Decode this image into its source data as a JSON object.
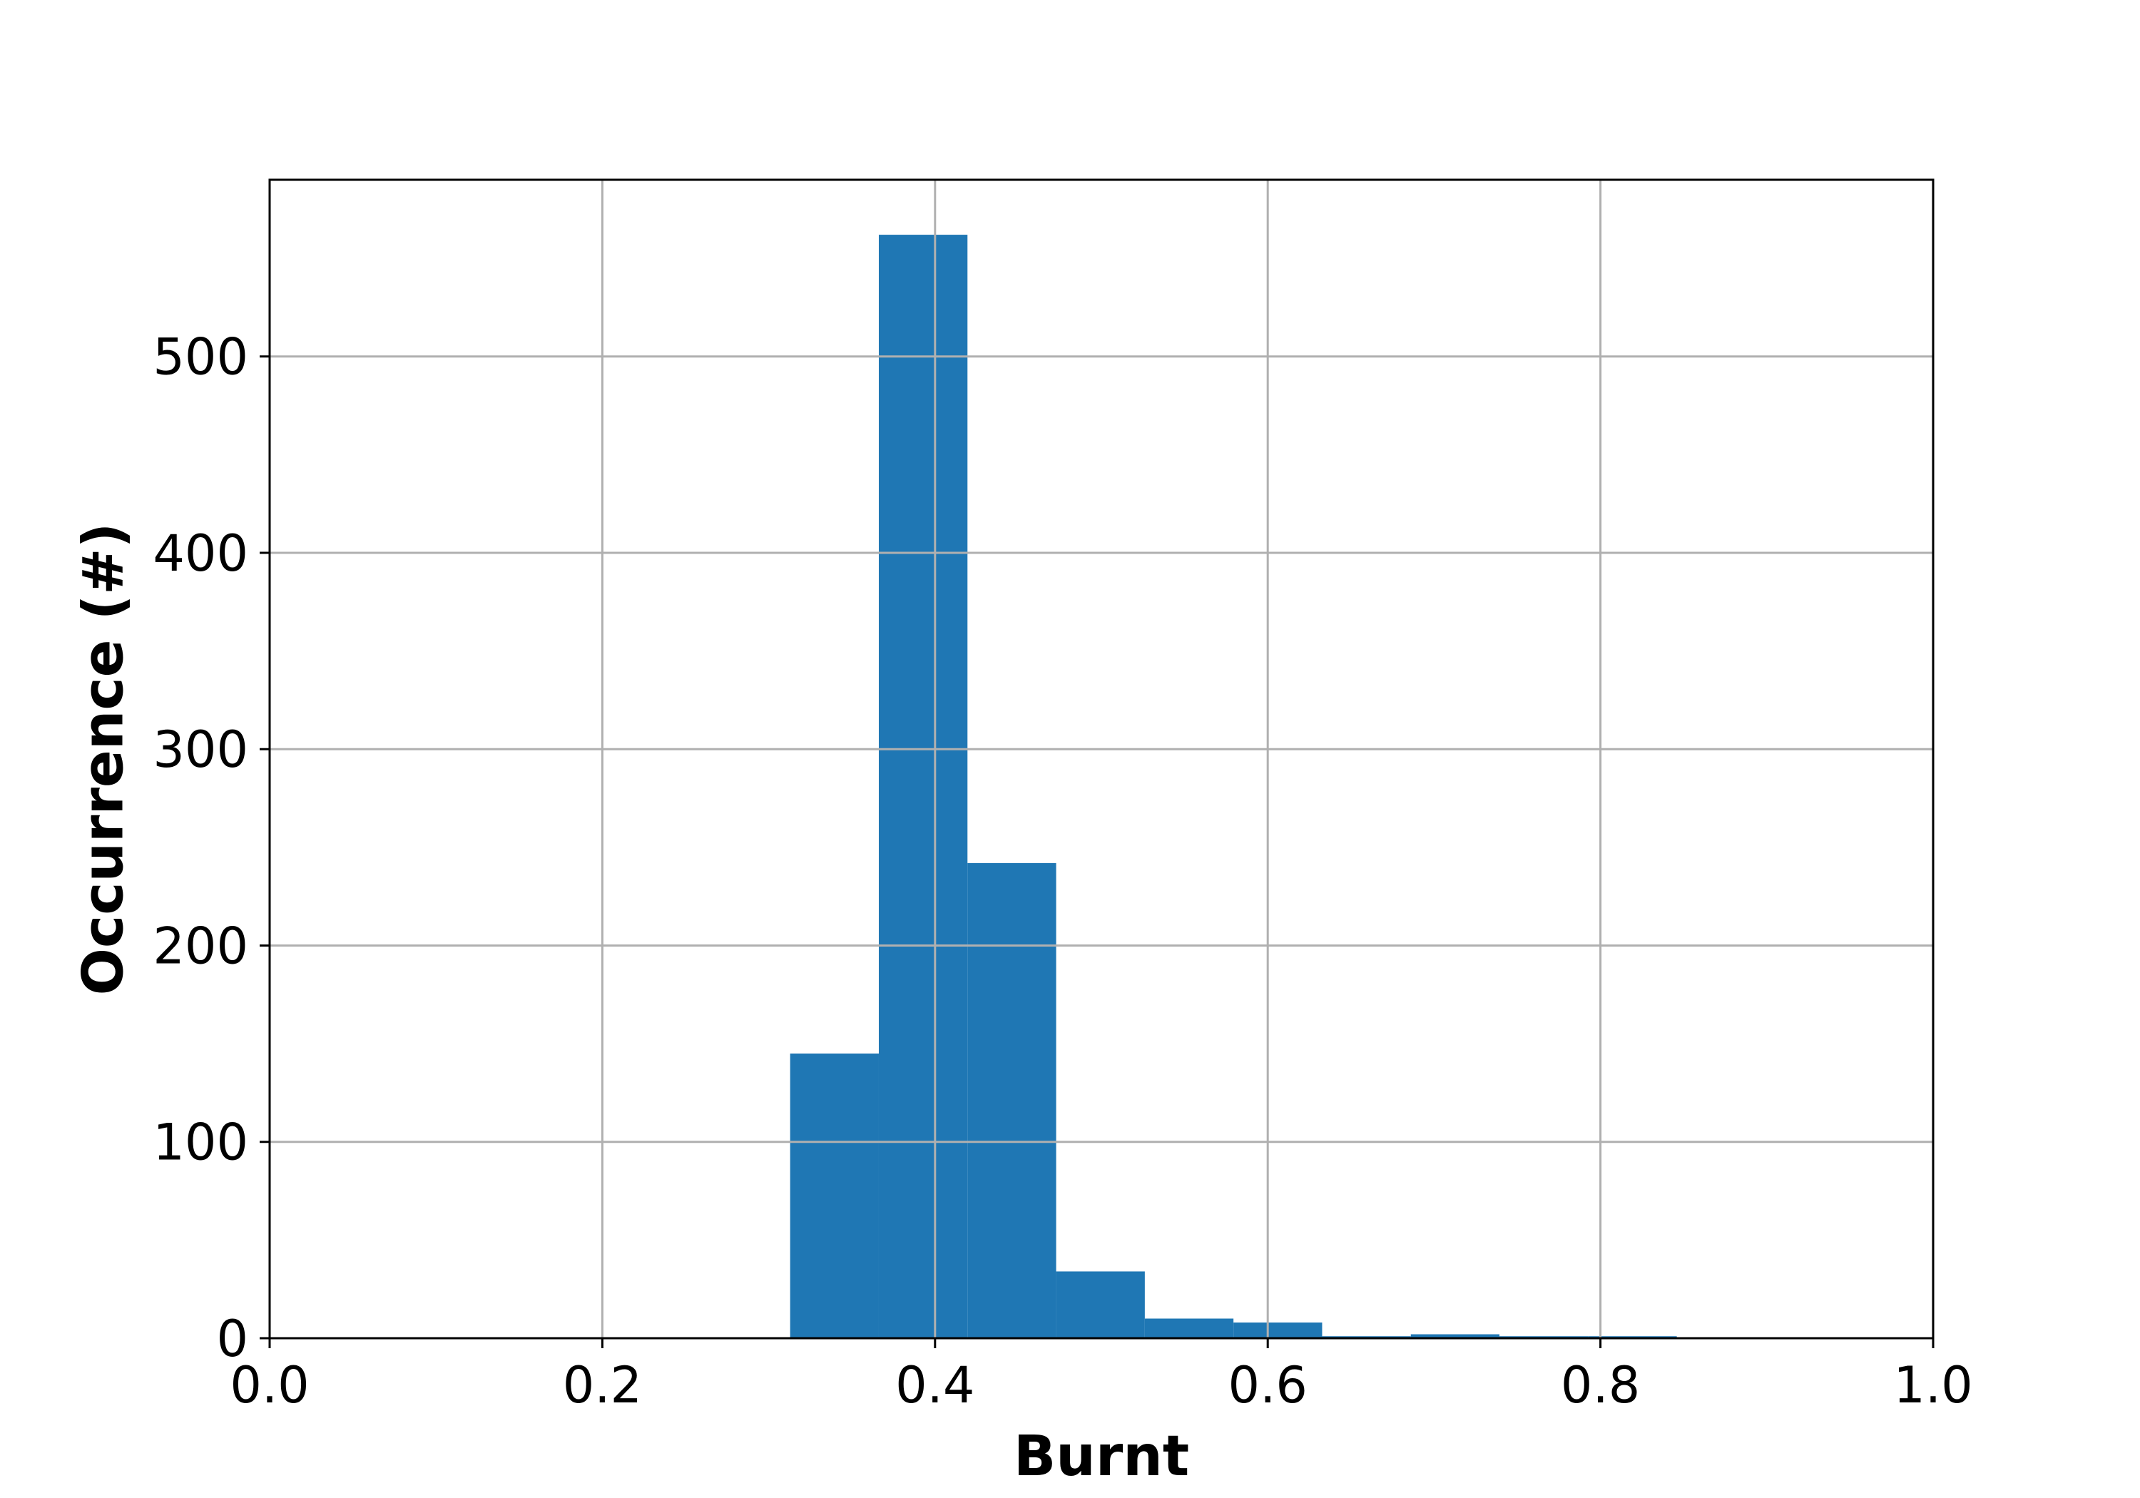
{
  "chart_data": {
    "type": "bar",
    "subtype": "histogram",
    "xlabel": "Burnt",
    "ylabel": "Occurrence (#)",
    "xlim": [
      0.0,
      1.0
    ],
    "ylim": [
      0,
      590
    ],
    "xticks": [
      "0.0",
      "0.2",
      "0.4",
      "0.6",
      "0.8",
      "1.0"
    ],
    "yticks": [
      "0",
      "100",
      "200",
      "300",
      "400",
      "500"
    ],
    "grid": true,
    "bar_color": "#1f77b4",
    "bins": [
      {
        "x0": 0.3129,
        "x1": 0.3662,
        "value": 145
      },
      {
        "x0": 0.3662,
        "x1": 0.4195,
        "value": 562
      },
      {
        "x0": 0.4195,
        "x1": 0.4728,
        "value": 242
      },
      {
        "x0": 0.4728,
        "x1": 0.5261,
        "value": 34
      },
      {
        "x0": 0.5261,
        "x1": 0.5794,
        "value": 10
      },
      {
        "x0": 0.5794,
        "x1": 0.6327,
        "value": 8
      },
      {
        "x0": 0.6327,
        "x1": 0.686,
        "value": 1
      },
      {
        "x0": 0.686,
        "x1": 0.7393,
        "value": 2
      },
      {
        "x0": 0.7393,
        "x1": 0.7926,
        "value": 1
      },
      {
        "x0": 0.7926,
        "x1": 0.8459,
        "value": 1
      }
    ]
  }
}
